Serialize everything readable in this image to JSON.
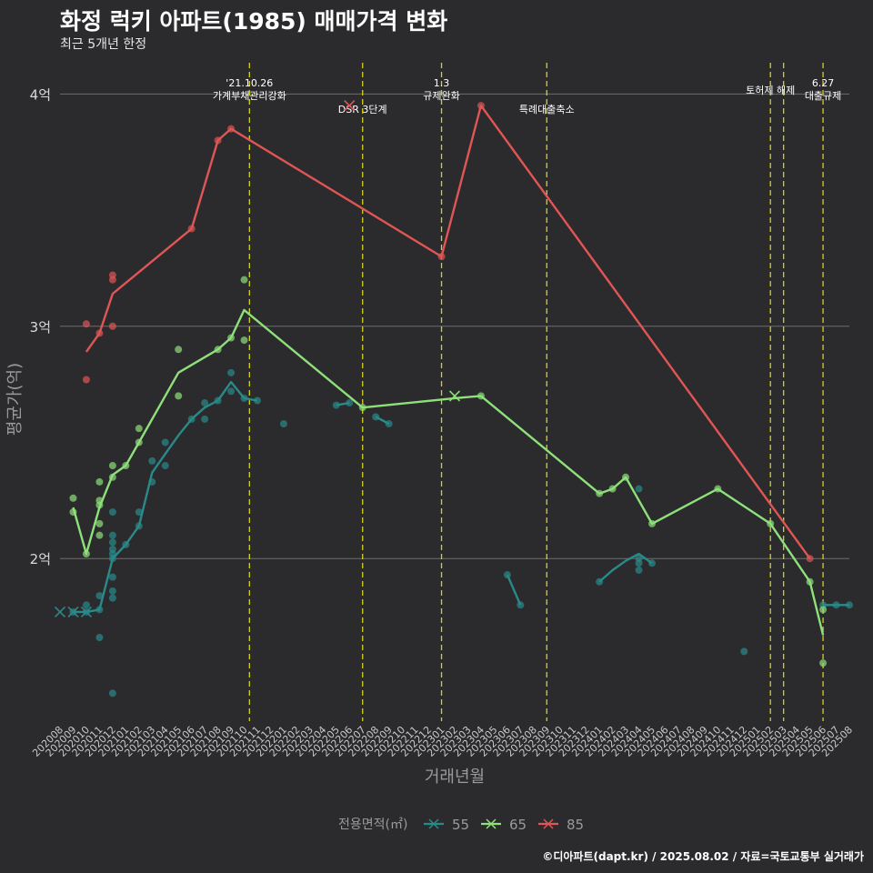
{
  "title": "화정 럭키 아파트(1985) 매매가격 변화",
  "subtitle": "최근 5개년 한정",
  "caption": "©디아파트(dapt.kr) / 2025.08.02 / 자료=국토교통부 실거래가",
  "chart_data": {
    "type": "line",
    "xlabel": "거래년월",
    "ylabel": "평균가(억)",
    "ylim": [
      1.3,
      4.15
    ],
    "y_ticks": [
      {
        "value": 2,
        "label": "2억"
      },
      {
        "value": 3,
        "label": "3억"
      },
      {
        "value": 4,
        "label": "4억"
      }
    ],
    "categories": [
      "202008",
      "202009",
      "202010",
      "202011",
      "202012",
      "202101",
      "202102",
      "202103",
      "202104",
      "202105",
      "202106",
      "202107",
      "202108",
      "202109",
      "202110",
      "202111",
      "202112",
      "202201",
      "202202",
      "202203",
      "202204",
      "202205",
      "202206",
      "202207",
      "202208",
      "202209",
      "202210",
      "202211",
      "202212",
      "202301",
      "202302",
      "202303",
      "202304",
      "202305",
      "202306",
      "202307",
      "202308",
      "202309",
      "202310",
      "202311",
      "202312",
      "202401",
      "202402",
      "202403",
      "202404",
      "202405",
      "202406",
      "202407",
      "202408",
      "202409",
      "202410",
      "202411",
      "202412",
      "202501",
      "202502",
      "202503",
      "202504",
      "202505",
      "202506",
      "202507",
      "202508"
    ],
    "legend_title": "전용면적(㎡)",
    "grid": true,
    "legend_position": "bottom",
    "events": [
      {
        "x": "202110.4",
        "label": "'21.10.26\n가계부채관리강화"
      },
      {
        "x": "202207",
        "label": "DSR 3단계"
      },
      {
        "x": "202301",
        "label": "1.3\n규제완화"
      },
      {
        "x": "202309",
        "label": "특례대출축소"
      },
      {
        "x": "202502",
        "label": "토허제 해제"
      },
      {
        "x": "202503",
        "label": ""
      },
      {
        "x": "202506",
        "label": "6.27\n대출규제"
      }
    ],
    "series": [
      {
        "name": "55",
        "color": "#2a8a8a",
        "line": [
          [
            "202009",
            1.77
          ],
          [
            "202010",
            1.77
          ],
          [
            "202011",
            1.78
          ],
          [
            "202012",
            2.0
          ],
          [
            "202101",
            2.06
          ],
          [
            "202102",
            2.14
          ],
          [
            "202103",
            2.37
          ],
          [
            "202104",
            2.45
          ],
          [
            "202105",
            2.53
          ],
          [
            "202106",
            2.6
          ],
          [
            "202107",
            2.65
          ],
          [
            "202108",
            2.68
          ],
          [
            "202109",
            2.76
          ],
          [
            "202110",
            2.69
          ],
          [
            "202111",
            2.68
          ],
          null,
          [
            "202205",
            2.66
          ],
          [
            "202206",
            2.67
          ],
          null,
          [
            "202208",
            2.61
          ],
          [
            "202209",
            2.58
          ],
          null,
          [
            "202306",
            1.93
          ],
          [
            "202307",
            1.8
          ],
          null,
          [
            "202401",
            1.9
          ],
          [
            "202402",
            1.95
          ],
          [
            "202403",
            1.99
          ],
          [
            "202404",
            2.02
          ],
          [
            "202405",
            1.98
          ],
          null,
          [
            "202506",
            1.8
          ],
          [
            "202507",
            1.8
          ],
          [
            "202508",
            1.8
          ]
        ],
        "points": [
          [
            "202009",
            1.77
          ],
          [
            "202010",
            1.77
          ],
          [
            "202010",
            1.8
          ],
          [
            "202011",
            1.84
          ],
          [
            "202011",
            1.78
          ],
          [
            "202011",
            1.66
          ],
          [
            "202012",
            2.2
          ],
          [
            "202012",
            2.1
          ],
          [
            "202012",
            2.07
          ],
          [
            "202012",
            2.04
          ],
          [
            "202012",
            2.02
          ],
          [
            "202012",
            2.0
          ],
          [
            "202012",
            1.92
          ],
          [
            "202012",
            1.86
          ],
          [
            "202012",
            1.83
          ],
          [
            "202012",
            1.42
          ],
          [
            "202101",
            2.06
          ],
          [
            "202102",
            2.2
          ],
          [
            "202102",
            2.14
          ],
          [
            "202103",
            2.42
          ],
          [
            "202103",
            2.33
          ],
          [
            "202104",
            2.5
          ],
          [
            "202104",
            2.4
          ],
          [
            "202106",
            2.6
          ],
          [
            "202107",
            2.67
          ],
          [
            "202107",
            2.6
          ],
          [
            "202108",
            2.68
          ],
          [
            "202109",
            2.8
          ],
          [
            "202109",
            2.72
          ],
          [
            "202110",
            2.69
          ],
          [
            "202111",
            2.68
          ],
          [
            "202201",
            2.58
          ],
          [
            "202205",
            2.66
          ],
          [
            "202206",
            2.67
          ],
          [
            "202208",
            2.61
          ],
          [
            "202209",
            2.58
          ],
          [
            "202306",
            1.93
          ],
          [
            "202307",
            1.8
          ],
          [
            "202401",
            1.9
          ],
          [
            "202404",
            2.0
          ],
          [
            "202404",
            1.98
          ],
          [
            "202404",
            1.95
          ],
          [
            "202404",
            2.3
          ],
          [
            "202405",
            1.98
          ],
          [
            "202412",
            1.6
          ],
          [
            "202506",
            1.8
          ],
          [
            "202507",
            1.8
          ],
          [
            "202508",
            1.8
          ]
        ],
        "crosses": [
          [
            "202008",
            1.77
          ],
          [
            "202009",
            1.77
          ],
          [
            "202010",
            1.77
          ]
        ]
      },
      {
        "name": "65",
        "color": "#8ee07a",
        "line": [
          [
            "202009",
            2.22
          ],
          [
            "202010",
            2.02
          ],
          [
            "202011",
            2.22
          ],
          [
            "202012",
            2.36
          ],
          [
            "202101",
            2.4
          ],
          [
            "202102",
            2.5
          ],
          [
            "202105",
            2.8
          ],
          [
            "202108",
            2.9
          ],
          [
            "202109",
            2.95
          ],
          [
            "202110",
            3.07
          ],
          [
            "202207",
            2.65
          ],
          [
            "202302",
            2.69
          ],
          [
            "202304",
            2.7
          ],
          [
            "202401",
            2.28
          ],
          [
            "202402",
            2.3
          ],
          [
            "202403",
            2.35
          ],
          [
            "202405",
            2.15
          ],
          [
            "202410",
            2.3
          ],
          [
            "202502",
            2.15
          ],
          [
            "202505",
            1.9
          ],
          [
            "202506",
            1.67
          ]
        ],
        "points": [
          [
            "202009",
            2.26
          ],
          [
            "202009",
            2.2
          ],
          [
            "202010",
            2.02
          ],
          [
            "202011",
            2.33
          ],
          [
            "202011",
            2.25
          ],
          [
            "202011",
            2.23
          ],
          [
            "202011",
            2.15
          ],
          [
            "202011",
            2.1
          ],
          [
            "202012",
            2.4
          ],
          [
            "202012",
            2.35
          ],
          [
            "202101",
            2.4
          ],
          [
            "202102",
            2.56
          ],
          [
            "202102",
            2.5
          ],
          [
            "202105",
            2.9
          ],
          [
            "202105",
            2.7
          ],
          [
            "202108",
            2.9
          ],
          [
            "202109",
            2.95
          ],
          [
            "202110",
            3.2
          ],
          [
            "202110",
            2.94
          ],
          [
            "202207",
            2.65
          ],
          [
            "202304",
            2.7
          ],
          [
            "202401",
            2.28
          ],
          [
            "202402",
            2.3
          ],
          [
            "202403",
            2.35
          ],
          [
            "202405",
            2.15
          ],
          [
            "202410",
            2.3
          ],
          [
            "202502",
            2.15
          ],
          [
            "202505",
            1.9
          ],
          [
            "202506",
            1.78
          ],
          [
            "202506",
            1.55
          ]
        ],
        "crosses": [
          [
            "202302",
            2.7
          ]
        ]
      },
      {
        "name": "85",
        "color": "#e05555",
        "line": [
          [
            "202010",
            2.89
          ],
          [
            "202011",
            2.97
          ],
          [
            "202012",
            3.14
          ],
          [
            "202106",
            3.42
          ],
          [
            "202108",
            3.8
          ],
          [
            "202109",
            3.85
          ],
          [
            "202301",
            3.3
          ],
          [
            "202304",
            3.95
          ],
          [
            "202505",
            2.0
          ]
        ],
        "points": [
          [
            "202010",
            3.01
          ],
          [
            "202010",
            2.77
          ],
          [
            "202011",
            2.97
          ],
          [
            "202012",
            3.22
          ],
          [
            "202012",
            3.2
          ],
          [
            "202012",
            3.0
          ],
          [
            "202106",
            3.42
          ],
          [
            "202108",
            3.8
          ],
          [
            "202109",
            3.85
          ],
          [
            "202301",
            3.3
          ],
          [
            "202304",
            3.95
          ],
          [
            "202505",
            2.0
          ]
        ],
        "crosses": [
          [
            "202206",
            3.95
          ]
        ]
      }
    ]
  }
}
